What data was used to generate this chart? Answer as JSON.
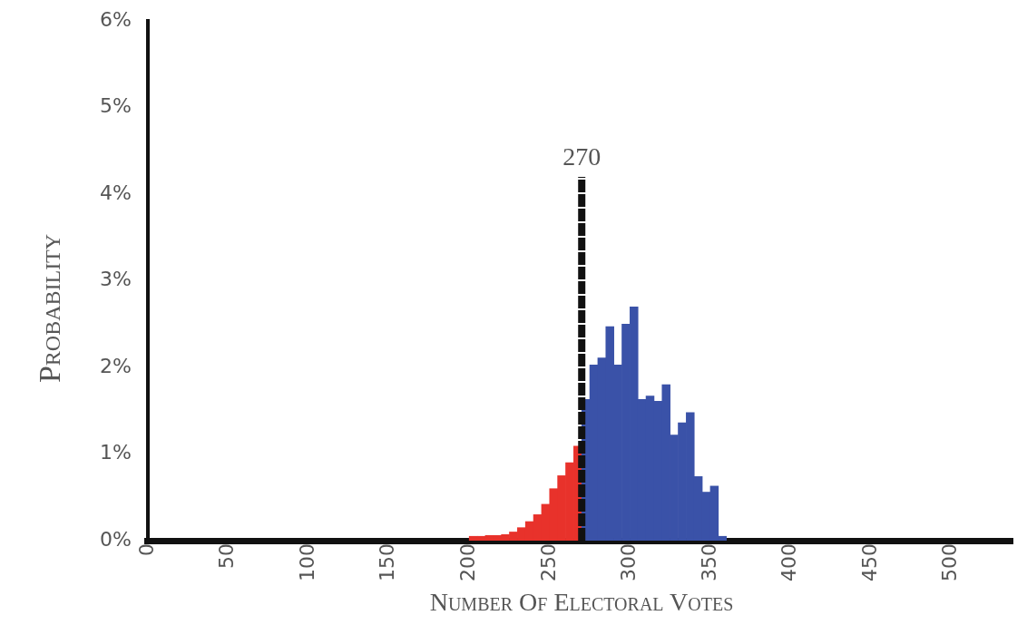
{
  "chart_data": {
    "type": "histogram",
    "xlabel": "Number Of Electoral Votes",
    "ylabel": "Probability",
    "bins": [
      200,
      205,
      210,
      215,
      220,
      225,
      230,
      235,
      240,
      245,
      250,
      255,
      260,
      265,
      270,
      275,
      280,
      285,
      290,
      295,
      300,
      305,
      310,
      315,
      320,
      325,
      330,
      335,
      340,
      345,
      350,
      355,
      360
    ],
    "values": [
      0.05,
      0.05,
      0.06,
      0.06,
      0.07,
      0.1,
      0.15,
      0.22,
      0.3,
      0.42,
      0.6,
      0.75,
      0.9,
      1.09,
      1.63,
      2.03,
      2.11,
      2.47,
      2.03,
      2.5,
      2.7,
      1.63,
      1.67,
      1.61,
      1.8,
      1.22,
      1.36,
      1.48,
      0.74,
      0.56,
      0.63,
      0.05
    ],
    "colors": [
      "#e8322b",
      "#e8322b",
      "#e8322b",
      "#e8322b",
      "#e8322b",
      "#e8322b",
      "#e8322b",
      "#e8322b",
      "#e8322b",
      "#e8322b",
      "#e8322b",
      "#e8322b",
      "#e8322b",
      "#e8322b",
      "#3a52a8",
      "#3a52a8",
      "#3a52a8",
      "#3a52a8",
      "#3a52a8",
      "#3a52a8",
      "#3a52a8",
      "#3a52a8",
      "#3a52a8",
      "#3a52a8",
      "#3a52a8",
      "#3a52a8",
      "#3a52a8",
      "#3a52a8",
      "#3a52a8",
      "#3a52a8",
      "#3a52a8",
      "#3a52a8"
    ],
    "xlim": [
      0,
      538
    ],
    "xticks": [
      0,
      50,
      100,
      150,
      200,
      250,
      300,
      350,
      400,
      450,
      500
    ],
    "ylim": [
      0,
      6
    ],
    "yticks": [
      {
        "value": 0,
        "label": "0%"
      },
      {
        "value": 1,
        "label": "1%"
      },
      {
        "value": 2,
        "label": "2%"
      },
      {
        "value": 3,
        "label": "3%"
      },
      {
        "value": 4,
        "label": "4%"
      },
      {
        "value": 5,
        "label": "5%"
      },
      {
        "value": 6,
        "label": "6%"
      }
    ],
    "ref_lines": [
      {
        "axis": "x",
        "value": 270,
        "label": "270",
        "color": "#111111",
        "line_style": "dashed"
      }
    ],
    "grid": false,
    "legend": false
  }
}
